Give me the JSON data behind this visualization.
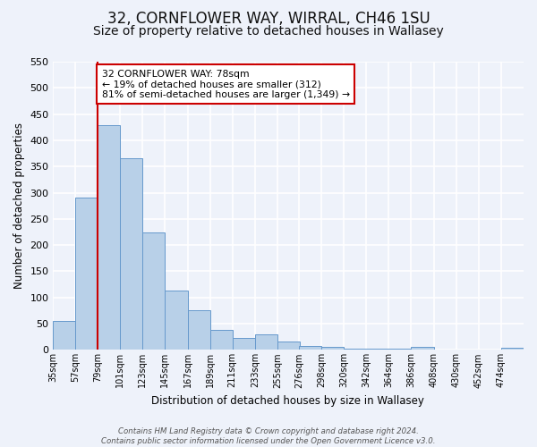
{
  "title": "32, CORNFLOWER WAY, WIRRAL, CH46 1SU",
  "subtitle": "Size of property relative to detached houses in Wallasey",
  "bar_labels": [
    "35sqm",
    "57sqm",
    "79sqm",
    "101sqm",
    "123sqm",
    "145sqm",
    "167sqm",
    "189sqm",
    "211sqm",
    "233sqm",
    "255sqm",
    "276sqm",
    "298sqm",
    "320sqm",
    "342sqm",
    "364sqm",
    "386sqm",
    "408sqm",
    "430sqm",
    "452sqm",
    "474sqm"
  ],
  "bar_values": [
    55,
    291,
    429,
    365,
    225,
    113,
    76,
    38,
    22,
    29,
    16,
    8,
    5,
    3,
    3,
    2,
    6,
    0,
    0,
    0,
    4
  ],
  "bar_color": "#b8d0e8",
  "bar_edge_color": "#6699cc",
  "ylabel": "Number of detached properties",
  "xlabel": "Distribution of detached houses by size in Wallasey",
  "ylim_max": 550,
  "yticks": [
    0,
    50,
    100,
    150,
    200,
    250,
    300,
    350,
    400,
    450,
    500,
    550
  ],
  "property_line_color": "#cc0000",
  "annotation_text": "32 CORNFLOWER WAY: 78sqm\n← 19% of detached houses are smaller (312)\n81% of semi-detached houses are larger (1,349) →",
  "annotation_box_color": "#ffffff",
  "annotation_box_edge": "#cc0000",
  "footer_line1": "Contains HM Land Registry data © Crown copyright and database right 2024.",
  "footer_line2": "Contains public sector information licensed under the Open Government Licence v3.0.",
  "background_color": "#eef2fa",
  "grid_color": "#ffffff",
  "title_fontsize": 12,
  "subtitle_fontsize": 10,
  "bin_width": 22
}
